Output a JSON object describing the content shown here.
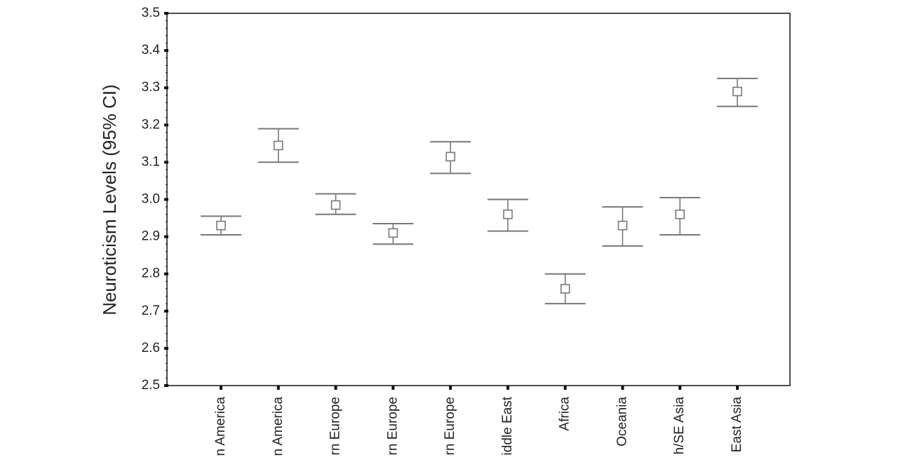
{
  "chart_data": {
    "type": "scatter",
    "ylabel": "Neuroticism Levels (95% CI)",
    "xlabel": "",
    "ylim": [
      2.5,
      3.5
    ],
    "yticks": [
      "2.5",
      "2.6",
      "2.7",
      "2.8",
      "2.9",
      "3.0",
      "3.1",
      "3.2",
      "3.3",
      "3.4",
      "3.5"
    ],
    "grid": false,
    "categories": [
      "n America",
      "n America",
      "rn Europe",
      "rn Europe",
      "rn Europe",
      "iddle East",
      "Africa",
      "Oceania",
      "h/SE Asia",
      "East Asia"
    ],
    "series": [
      {
        "values": [
          2.93,
          3.145,
          2.985,
          2.91,
          3.115,
          2.96,
          2.76,
          2.93,
          2.96,
          3.29
        ],
        "ci_low": [
          2.905,
          3.1,
          2.96,
          2.88,
          3.07,
          2.915,
          2.72,
          2.875,
          2.905,
          3.25
        ],
        "ci_high": [
          2.955,
          3.19,
          3.015,
          2.935,
          3.155,
          3.0,
          2.8,
          2.98,
          3.005,
          3.325
        ]
      }
    ],
    "colors": {
      "marker": "#777777",
      "axis": "#111111"
    }
  }
}
